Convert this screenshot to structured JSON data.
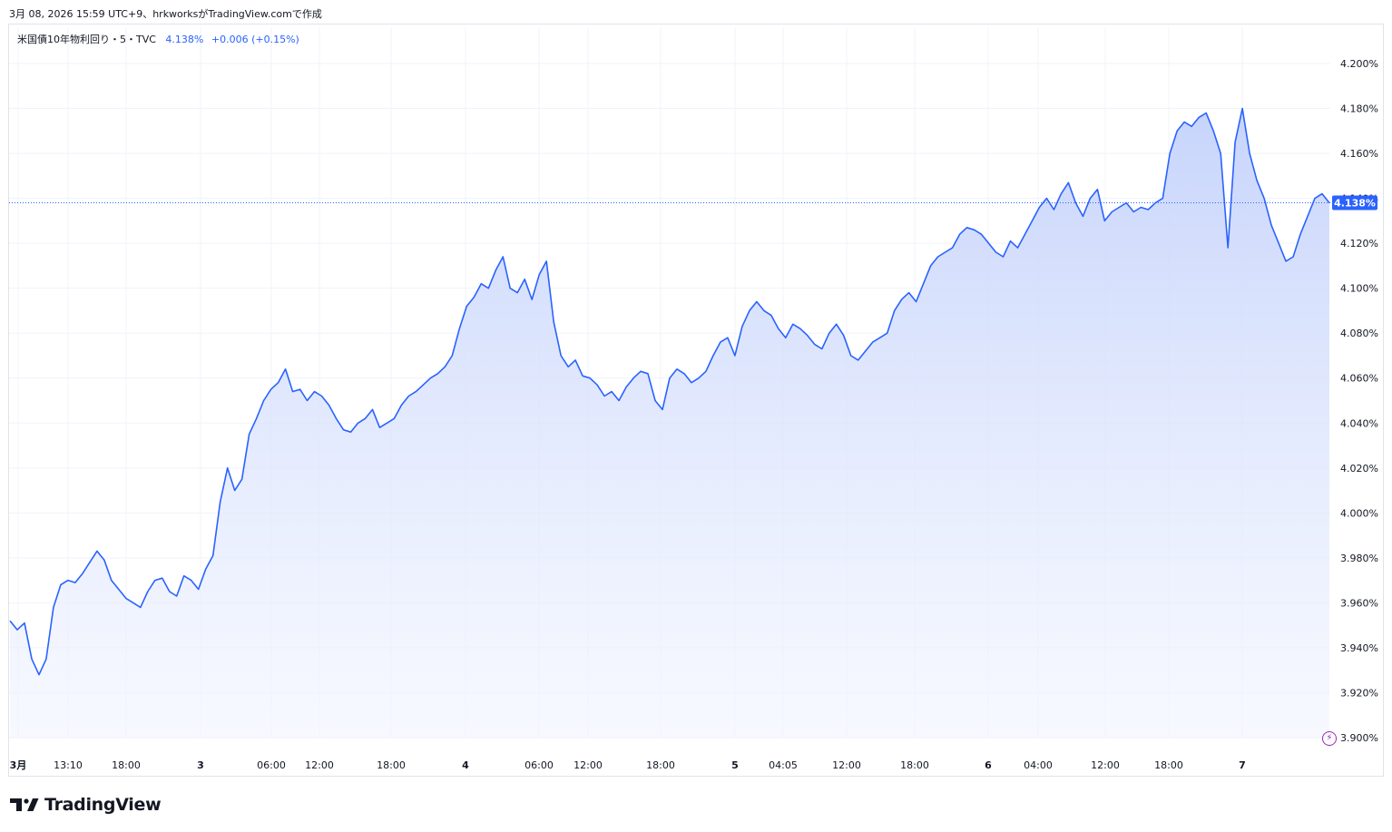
{
  "header": {
    "title": "3月 08, 2026 15:59 UTC+9、hrkworksがTradingView.comで作成"
  },
  "legend": {
    "symbol": "米国債10年物利回り・5・TVC",
    "last": "4.138%",
    "change": "+0.006 (+0.15%)"
  },
  "footer": {
    "brand": "TradingView"
  },
  "colors": {
    "line": "#2962ff",
    "fill_top": "#c4d2fb",
    "fill_bottom": "#f2f5ff",
    "grid": "#f0f3fa",
    "price_tag": "#2962ff"
  },
  "chart_data": {
    "type": "area",
    "title": "米国債10年物利回り・5・TVC",
    "ylim": [
      3.9,
      4.2
    ],
    "y_ticks": [
      "4.200%",
      "4.180%",
      "4.160%",
      "4.140%",
      "4.120%",
      "4.100%",
      "4.080%",
      "4.060%",
      "4.040%",
      "4.020%",
      "4.000%",
      "3.980%",
      "3.960%",
      "3.940%",
      "3.920%",
      "3.900%"
    ],
    "x_ticks": [
      "3月",
      "13:10",
      "18:00",
      "3",
      "06:00",
      "12:00",
      "18:00",
      "4",
      "06:00",
      "12:00",
      "18:00",
      "5",
      "04:05",
      "12:00",
      "18:00",
      "6",
      "04:00",
      "12:00",
      "18:00",
      "7"
    ],
    "last_value_label": "4.138%",
    "last_value": 4.138,
    "series": [
      {
        "values": [
          3.952,
          3.948,
          3.951,
          3.935,
          3.928,
          3.935,
          3.958,
          3.968,
          3.97,
          3.969,
          3.973,
          3.978,
          3.983,
          3.979,
          3.97,
          3.966,
          3.962,
          3.96,
          3.958,
          3.965,
          3.97,
          3.971,
          3.965,
          3.963,
          3.972,
          3.97,
          3.966,
          3.975,
          3.981,
          4.005,
          4.02,
          4.01,
          4.015,
          4.035,
          4.042,
          4.05,
          4.055,
          4.058,
          4.064,
          4.054,
          4.055,
          4.05,
          4.054,
          4.052,
          4.048,
          4.042,
          4.037,
          4.036,
          4.04,
          4.042,
          4.046,
          4.038,
          4.04,
          4.042,
          4.048,
          4.052,
          4.054,
          4.057,
          4.06,
          4.062,
          4.065,
          4.07,
          4.082,
          4.092,
          4.096,
          4.102,
          4.1,
          4.108,
          4.114,
          4.1,
          4.098,
          4.104,
          4.095,
          4.106,
          4.112,
          4.085,
          4.07,
          4.065,
          4.068,
          4.061,
          4.06,
          4.057,
          4.052,
          4.054,
          4.05,
          4.056,
          4.06,
          4.063,
          4.062,
          4.05,
          4.046,
          4.06,
          4.064,
          4.062,
          4.058,
          4.06,
          4.063,
          4.07,
          4.076,
          4.078,
          4.07,
          4.083,
          4.09,
          4.094,
          4.09,
          4.088,
          4.082,
          4.078,
          4.084,
          4.082,
          4.079,
          4.075,
          4.073,
          4.08,
          4.084,
          4.079,
          4.07,
          4.068,
          4.072,
          4.076,
          4.078,
          4.08,
          4.09,
          4.095,
          4.098,
          4.094,
          4.102,
          4.11,
          4.114,
          4.116,
          4.118,
          4.124,
          4.127,
          4.126,
          4.124,
          4.12,
          4.116,
          4.114,
          4.121,
          4.118,
          4.124,
          4.13,
          4.136,
          4.14,
          4.135,
          4.142,
          4.147,
          4.138,
          4.132,
          4.14,
          4.144,
          4.13,
          4.134,
          4.136,
          4.138,
          4.134,
          4.136,
          4.135,
          4.138,
          4.14,
          4.16,
          4.17,
          4.174,
          4.172,
          4.176,
          4.178,
          4.17,
          4.16,
          4.118,
          4.165,
          4.18,
          4.16,
          4.148,
          4.14,
          4.128,
          4.12,
          4.112,
          4.114,
          4.124,
          4.132,
          4.14,
          4.142,
          4.138
        ]
      }
    ]
  }
}
